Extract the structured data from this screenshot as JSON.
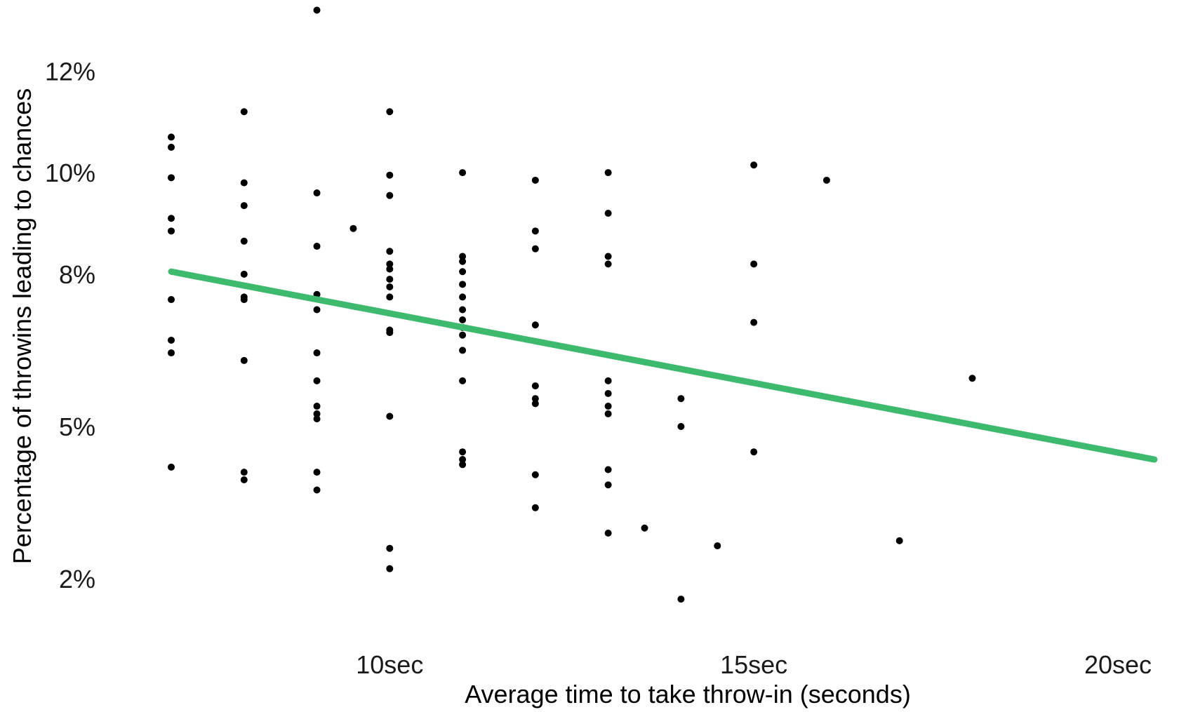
{
  "chart_data": {
    "type": "scatter",
    "xlabel": "Average time to take throw-in (seconds)",
    "ylabel": "Percentage of throwins leading to chances",
    "x_ticks": [
      {
        "value": 10,
        "label": "10sec"
      },
      {
        "value": 15,
        "label": "15sec"
      },
      {
        "value": 20,
        "label": "20sec"
      }
    ],
    "y_ticks": [
      {
        "value": 2,
        "label": "2%"
      },
      {
        "value": 5,
        "label": "5%"
      },
      {
        "value": 8,
        "label": "8%"
      },
      {
        "value": 10,
        "label": "10%"
      },
      {
        "value": 12,
        "label": "12%"
      }
    ],
    "xlim": [
      6.2,
      20.8
    ],
    "ylim": [
      0.8,
      13.4
    ],
    "grid": false,
    "legend": "none",
    "colors": {
      "points": "#000000",
      "trend_line": "#3dba6e",
      "text": "#1a1a1a"
    },
    "points": [
      {
        "x": 7,
        "y": 10.7
      },
      {
        "x": 7,
        "y": 10.5
      },
      {
        "x": 7,
        "y": 9.9
      },
      {
        "x": 7,
        "y": 9.1
      },
      {
        "x": 7,
        "y": 8.85
      },
      {
        "x": 7,
        "y": 7.5
      },
      {
        "x": 7,
        "y": 6.7
      },
      {
        "x": 7,
        "y": 6.45
      },
      {
        "x": 7,
        "y": 4.2
      },
      {
        "x": 8,
        "y": 11.2
      },
      {
        "x": 8,
        "y": 9.8
      },
      {
        "x": 8,
        "y": 9.35
      },
      {
        "x": 8,
        "y": 8.65
      },
      {
        "x": 8,
        "y": 8.0
      },
      {
        "x": 8,
        "y": 7.55
      },
      {
        "x": 8,
        "y": 7.5
      },
      {
        "x": 8,
        "y": 6.3
      },
      {
        "x": 8,
        "y": 4.1
      },
      {
        "x": 8,
        "y": 3.95
      },
      {
        "x": 9,
        "y": 13.2
      },
      {
        "x": 9,
        "y": 9.6
      },
      {
        "x": 9,
        "y": 8.55
      },
      {
        "x": 9,
        "y": 7.6
      },
      {
        "x": 9,
        "y": 7.3
      },
      {
        "x": 9,
        "y": 6.45
      },
      {
        "x": 9,
        "y": 5.9
      },
      {
        "x": 9,
        "y": 5.4
      },
      {
        "x": 9,
        "y": 5.25
      },
      {
        "x": 9,
        "y": 5.15
      },
      {
        "x": 9,
        "y": 4.1
      },
      {
        "x": 9,
        "y": 3.75
      },
      {
        "x": 9.5,
        "y": 8.9
      },
      {
        "x": 10,
        "y": 11.2
      },
      {
        "x": 10,
        "y": 9.95
      },
      {
        "x": 10,
        "y": 9.55
      },
      {
        "x": 10,
        "y": 8.45
      },
      {
        "x": 10,
        "y": 8.2
      },
      {
        "x": 10,
        "y": 8.1
      },
      {
        "x": 10,
        "y": 7.9
      },
      {
        "x": 10,
        "y": 7.75
      },
      {
        "x": 10,
        "y": 7.55
      },
      {
        "x": 10,
        "y": 6.9
      },
      {
        "x": 10,
        "y": 6.85
      },
      {
        "x": 10,
        "y": 5.2
      },
      {
        "x": 10,
        "y": 2.6
      },
      {
        "x": 10,
        "y": 2.2
      },
      {
        "x": 11,
        "y": 10.0
      },
      {
        "x": 11,
        "y": 8.35
      },
      {
        "x": 11,
        "y": 8.25
      },
      {
        "x": 11,
        "y": 8.05
      },
      {
        "x": 11,
        "y": 7.8
      },
      {
        "x": 11,
        "y": 7.55
      },
      {
        "x": 11,
        "y": 7.3
      },
      {
        "x": 11,
        "y": 7.1
      },
      {
        "x": 11,
        "y": 6.95
      },
      {
        "x": 11,
        "y": 6.8
      },
      {
        "x": 11,
        "y": 6.5
      },
      {
        "x": 11,
        "y": 5.9
      },
      {
        "x": 11,
        "y": 4.5
      },
      {
        "x": 11,
        "y": 4.35
      },
      {
        "x": 11,
        "y": 4.25
      },
      {
        "x": 12,
        "y": 9.85
      },
      {
        "x": 12,
        "y": 8.85
      },
      {
        "x": 12,
        "y": 8.5
      },
      {
        "x": 12,
        "y": 7.0
      },
      {
        "x": 12,
        "y": 5.8
      },
      {
        "x": 12,
        "y": 5.55
      },
      {
        "x": 12,
        "y": 5.45
      },
      {
        "x": 12,
        "y": 4.05
      },
      {
        "x": 12,
        "y": 3.4
      },
      {
        "x": 13,
        "y": 10.0
      },
      {
        "x": 13,
        "y": 9.2
      },
      {
        "x": 13,
        "y": 8.35
      },
      {
        "x": 13,
        "y": 8.2
      },
      {
        "x": 13,
        "y": 5.9
      },
      {
        "x": 13,
        "y": 5.65
      },
      {
        "x": 13,
        "y": 5.4
      },
      {
        "x": 13,
        "y": 5.25
      },
      {
        "x": 13,
        "y": 4.15
      },
      {
        "x": 13,
        "y": 3.85
      },
      {
        "x": 13,
        "y": 2.9
      },
      {
        "x": 13.5,
        "y": 3.0
      },
      {
        "x": 14,
        "y": 5.55
      },
      {
        "x": 14,
        "y": 5.0
      },
      {
        "x": 14,
        "y": 1.6
      },
      {
        "x": 14.5,
        "y": 2.65
      },
      {
        "x": 15,
        "y": 10.15
      },
      {
        "x": 15,
        "y": 8.2
      },
      {
        "x": 15,
        "y": 7.05
      },
      {
        "x": 15,
        "y": 4.5
      },
      {
        "x": 16,
        "y": 9.85
      },
      {
        "x": 17,
        "y": 2.75
      },
      {
        "x": 18,
        "y": 5.95
      }
    ],
    "trend_line": {
      "x": [
        7,
        20.5
      ],
      "y": [
        8.05,
        4.35
      ]
    }
  }
}
